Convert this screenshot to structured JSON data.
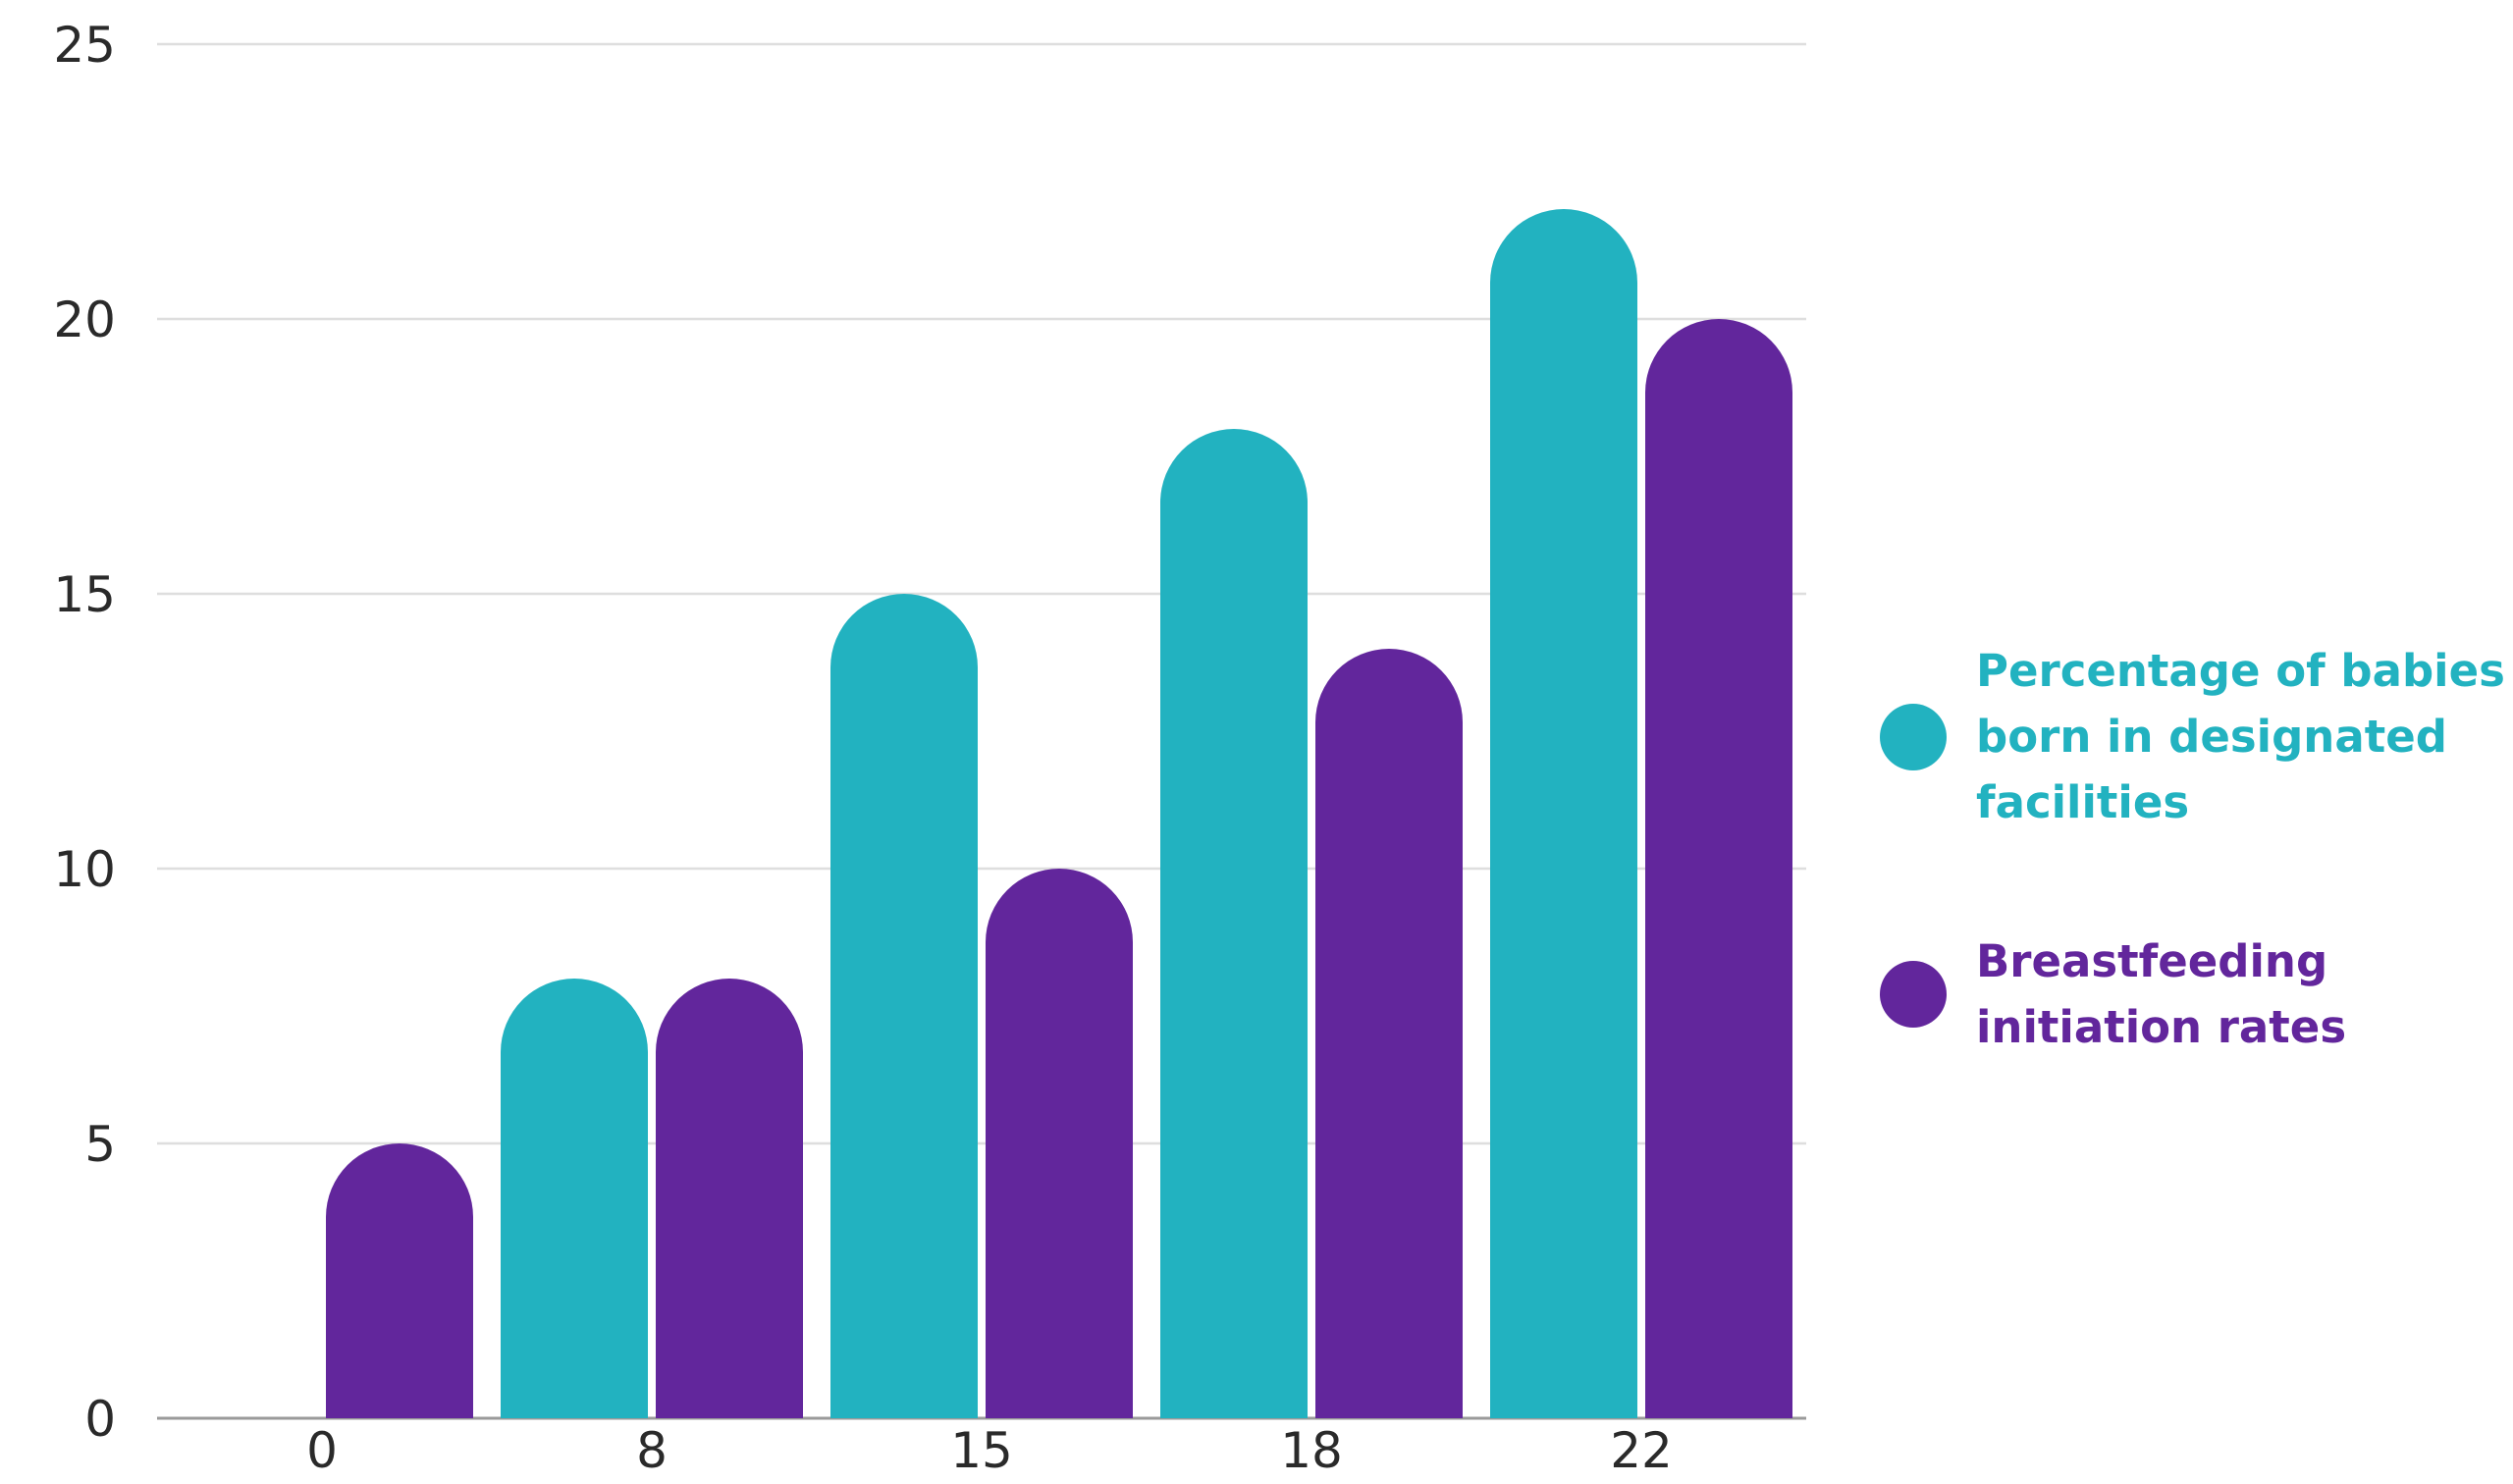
{
  "chart_data": {
    "type": "bar",
    "categories": [
      "0",
      "8",
      "15",
      "18",
      "22"
    ],
    "series": [
      {
        "name": "Percentage of babies born in designated facilities",
        "color": "#22b2c0",
        "values": [
          0,
          8,
          15,
          18,
          22
        ]
      },
      {
        "name": "Breastfeeding initiation rates",
        "color": "#62269c",
        "values": [
          5,
          8,
          10,
          14,
          20
        ]
      }
    ],
    "yticks": [
      "0",
      "5",
      "10",
      "15",
      "20",
      "25"
    ],
    "ylim": [
      0,
      25
    ],
    "grid": true,
    "legend_position": "right",
    "title": "",
    "xlabel": "",
    "ylabel": ""
  }
}
